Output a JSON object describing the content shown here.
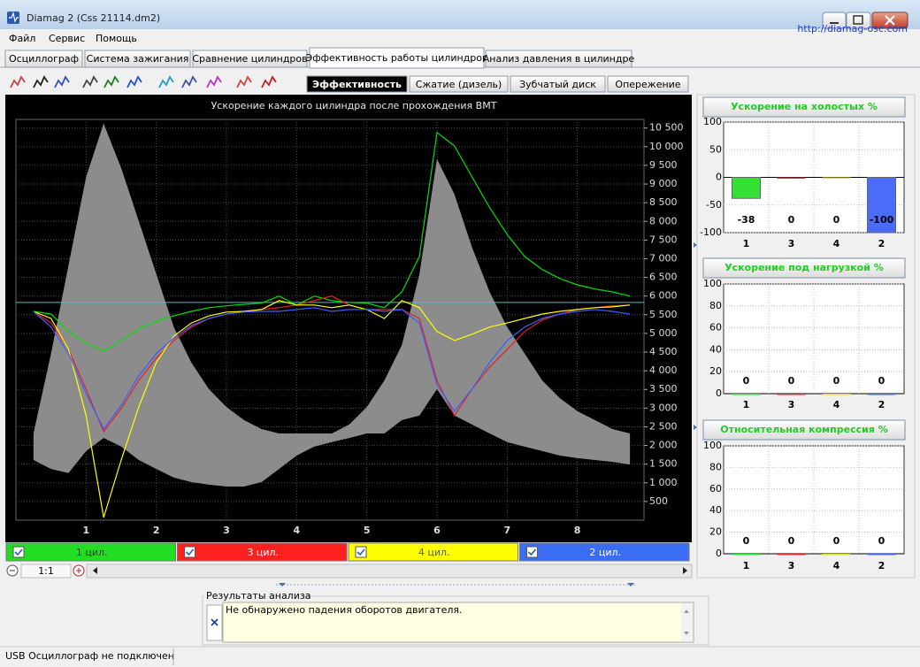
{
  "window": {
    "title": "Diamag 2 (Css 21114.dm2)",
    "url": "http://diamag-osc.com"
  },
  "menu": [
    "Файл",
    "Сервис",
    "Помощь"
  ],
  "tabs": [
    "Осциллограф",
    "Система зажигания",
    "Сравнение цилиндров",
    "Эффективность работы цилиндров",
    "Анализ давления в цилиндре"
  ],
  "active_tab": 3,
  "subtabs": [
    "Эффективность",
    "Сжатие (дизель)",
    "Зубчатый диск",
    "Опережение"
  ],
  "active_subtab": 0,
  "chart_data": [
    {
      "type": "line",
      "title": "Ускорение каждого цилиндра после прохождения ВМТ",
      "x": [
        0.25,
        0.5,
        0.75,
        1,
        1.25,
        1.5,
        1.75,
        2,
        2.25,
        2.5,
        2.75,
        3,
        3.25,
        3.5,
        3.75,
        4,
        4.25,
        4.5,
        4.75,
        5,
        5.25,
        5.5,
        5.75,
        6,
        6.25,
        6.5,
        6.75,
        7,
        7.25,
        7.5,
        7.75,
        8,
        8.25,
        8.5,
        8.75
      ],
      "signal": {
        "color": "#8c8c8c",
        "upper": [
          2320,
          4460,
          6830,
          9190,
          10620,
          9430,
          8010,
          6590,
          5170,
          4220,
          3510,
          3030,
          2680,
          2440,
          2320,
          2320,
          2320,
          2320,
          2560,
          3030,
          3740,
          4690,
          6590,
          9670,
          8720,
          7300,
          6110,
          5170,
          4460,
          3740,
          3270,
          2920,
          2680,
          2440,
          2320
        ],
        "lower": [
          1610,
          1370,
          1260,
          1850,
          2200,
          1970,
          1610,
          1370,
          1140,
          1020,
          950,
          900,
          900,
          1020,
          1370,
          1730,
          1970,
          2090,
          2200,
          2320,
          2320,
          2680,
          2800,
          3510,
          2800,
          2560,
          2320,
          2090,
          1970,
          1850,
          1730,
          1660,
          1610,
          1560,
          1490
        ]
      },
      "series": [
        {
          "name": "1 цил.",
          "color": "#00e000",
          "legend_color": "#22dd22",
          "values": [
            5590,
            5520,
            5050,
            4740,
            4530,
            4810,
            5120,
            5330,
            5470,
            5590,
            5690,
            5740,
            5780,
            5810,
            6000,
            5760,
            6000,
            5880,
            5830,
            5810,
            5690,
            6110,
            7060,
            10380,
            10020,
            9190,
            8370,
            7650,
            7060,
            6710,
            6470,
            6300,
            6190,
            6110,
            6000
          ]
        },
        {
          "name": "3 цил.",
          "color": "#e82020",
          "legend_color": "#ff2020",
          "values": [
            5590,
            5280,
            4570,
            3510,
            2370,
            2990,
            3740,
            4340,
            4810,
            5170,
            5400,
            5520,
            5590,
            5640,
            5690,
            5760,
            5880,
            6000,
            5760,
            5640,
            5640,
            5640,
            5400,
            3740,
            2800,
            3510,
            4100,
            4570,
            5050,
            5360,
            5520,
            5640,
            5690,
            5740,
            5760
          ]
        },
        {
          "name": "4 цил.",
          "color": "#ffff00",
          "legend_color": "#ffff00",
          "values": [
            5590,
            5400,
            4570,
            2800,
            70,
            1610,
            3030,
            4220,
            4930,
            5280,
            5470,
            5570,
            5590,
            5640,
            5880,
            5760,
            5760,
            5690,
            5760,
            5640,
            5400,
            5880,
            5690,
            5050,
            4810,
            4980,
            5170,
            5280,
            5400,
            5520,
            5590,
            5640,
            5690,
            5710,
            5760
          ]
        },
        {
          "name": "2 цил.",
          "color": "#3a5cff",
          "legend_color": "#3a6cf4",
          "values": [
            5590,
            5170,
            4460,
            3390,
            2440,
            3080,
            3860,
            4460,
            4880,
            5210,
            5400,
            5520,
            5570,
            5590,
            5590,
            5640,
            5690,
            5590,
            5640,
            5640,
            5590,
            5640,
            5280,
            3630,
            2920,
            3510,
            4220,
            4810,
            5170,
            5400,
            5520,
            5590,
            5640,
            5590,
            5520
          ]
        }
      ],
      "reference_line": 5830,
      "reference_color": "#3cc8c8",
      "xlim": [
        0,
        8.95
      ],
      "xticks": [
        1,
        2,
        3,
        4,
        5,
        6,
        7,
        8
      ],
      "ylim": [
        0,
        10730
      ],
      "yticks": [
        500,
        {
          "value": 1000,
          "label": "1 000"
        },
        {
          "value": 1500,
          "label": "1 500"
        },
        {
          "value": 2000,
          "label": "2 000"
        },
        {
          "value": 2500,
          "label": "2 500"
        },
        {
          "value": 3000,
          "label": "3 000"
        },
        {
          "value": 3500,
          "label": "3 500"
        },
        {
          "value": 4000,
          "label": "4 000"
        },
        {
          "value": 4500,
          "label": "4 500"
        },
        {
          "value": 5000,
          "label": "5 000"
        },
        {
          "value": 5500,
          "label": "5 500"
        },
        {
          "value": 6000,
          "label": "6 000"
        },
        {
          "value": 6500,
          "label": "6 500"
        },
        {
          "value": 7000,
          "label": "7 000"
        },
        {
          "value": 7500,
          "label": "7 500"
        },
        {
          "value": 8000,
          "label": "8 000"
        },
        {
          "value": 8500,
          "label": "8 500"
        },
        {
          "value": 9000,
          "label": "9 000"
        },
        {
          "value": 9500,
          "label": "9 500"
        },
        {
          "value": 10000,
          "label": "10 000"
        },
        {
          "value": 10500,
          "label": "10 500"
        }
      ],
      "grid": true
    },
    {
      "type": "bar",
      "title": "Ускорение на холостых %",
      "categories": [
        "1",
        "3",
        "4",
        "2"
      ],
      "values": [
        -38,
        0,
        0,
        -100
      ],
      "colors": [
        "#33e033",
        "#e03030",
        "#e8e020",
        "#4a6cf7"
      ],
      "ylim": [
        -100,
        100
      ],
      "yticks": [
        -100,
        -50,
        0,
        50,
        100
      ],
      "grid": true
    },
    {
      "type": "bar",
      "title": "Ускорение под нагрузкой %",
      "categories": [
        "1",
        "3",
        "4",
        "2"
      ],
      "values": [
        0,
        0,
        0,
        0
      ],
      "colors": [
        "#33e033",
        "#e03030",
        "#e8e020",
        "#4a6cf7"
      ],
      "ylim": [
        0,
        100
      ],
      "yticks": [
        0,
        20,
        40,
        60,
        80,
        100
      ],
      "grid": true
    },
    {
      "type": "bar",
      "title": "Относительная компрессия %",
      "categories": [
        "1",
        "3",
        "4",
        "2"
      ],
      "values": [
        0,
        0,
        0,
        0
      ],
      "colors": [
        "#33e033",
        "#e03030",
        "#e8e020",
        "#4a6cf7"
      ],
      "ylim": [
        0,
        100
      ],
      "yticks": [
        0,
        20,
        40,
        60,
        80,
        100
      ],
      "grid": true
    }
  ],
  "zoom": "1:1",
  "results": {
    "title": "Результаты анализа",
    "text": "Не обнаружено падения оборотов двигателя."
  },
  "status": "USB Осциллограф не подключен"
}
